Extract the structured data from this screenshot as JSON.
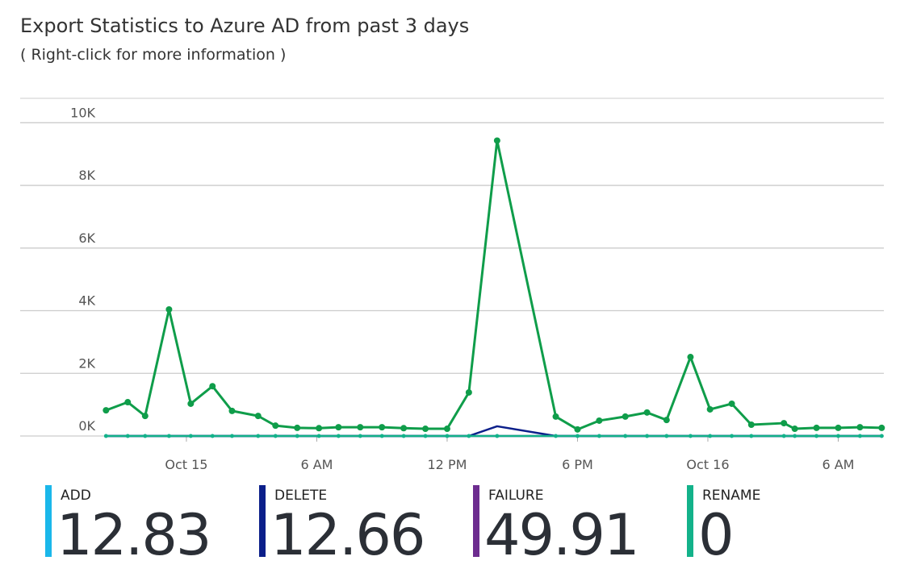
{
  "chart_data": {
    "type": "line",
    "title": "Export Statistics to Azure AD from past 3 days",
    "subtitle": "( Right-click for more information )",
    "x": [
      -3.7,
      -2.7,
      -1.9,
      -0.8,
      0.2,
      1.2,
      2.1,
      3.3,
      4.1,
      5.1,
      6.1,
      7.0,
      8.0,
      9.0,
      10.0,
      11.0,
      12.0,
      13.0,
      14.3,
      17.0,
      18.0,
      19.0,
      20.2,
      21.2,
      22.1,
      23.2,
      24.1,
      25.1,
      26.0,
      27.5,
      28.0,
      29.0,
      30.0,
      31.0,
      32.0
    ],
    "xlim": [
      -3.75,
      32.1
    ],
    "xticks": [
      {
        "value": 0,
        "label": "Oct 15"
      },
      {
        "value": 6,
        "label": "6 AM"
      },
      {
        "value": 12,
        "label": "12 PM"
      },
      {
        "value": 18,
        "label": "6 PM"
      },
      {
        "value": 24,
        "label": "Oct 16"
      },
      {
        "value": 30,
        "label": "6 AM"
      }
    ],
    "ylim": [
      0,
      10780
    ],
    "yticks": [
      {
        "value": 0,
        "label": "0K"
      },
      {
        "value": 2000,
        "label": "2K"
      },
      {
        "value": 4000,
        "label": "4K"
      },
      {
        "value": 6000,
        "label": "6K"
      },
      {
        "value": 8000,
        "label": "8K"
      },
      {
        "value": 10000,
        "label": "10K"
      }
    ],
    "grid": true,
    "series": [
      {
        "color": "#0f9d4a",
        "values": [
          820,
          1080,
          640,
          4040,
          1030,
          1590,
          800,
          640,
          330,
          260,
          250,
          280,
          280,
          280,
          250,
          230,
          230,
          1390,
          9430,
          620,
          210,
          490,
          620,
          750,
          510,
          2520,
          850,
          1030,
          360,
          410,
          230,
          260,
          260,
          280,
          260
        ]
      },
      {
        "color": "#6d2c8f",
        "values": [
          0,
          0,
          0,
          0,
          0,
          0,
          0,
          0,
          0,
          0,
          0,
          0,
          0,
          0,
          0,
          0,
          0,
          0,
          0,
          0,
          0,
          0,
          0,
          0,
          0,
          0,
          0,
          0,
          0,
          0,
          0,
          0,
          0,
          0,
          0
        ]
      },
      {
        "color": "#0b1f8a",
        "values": [
          0,
          0,
          0,
          0,
          0,
          0,
          0,
          0,
          0,
          0,
          0,
          0,
          0,
          0,
          0,
          0,
          0,
          0,
          310,
          0,
          0,
          0,
          0,
          0,
          0,
          0,
          0,
          0,
          0,
          0,
          0,
          0,
          0,
          0,
          0
        ]
      },
      {
        "color": "#13b28a",
        "values": [
          0,
          0,
          0,
          0,
          0,
          0,
          0,
          0,
          0,
          0,
          0,
          0,
          0,
          0,
          0,
          0,
          0,
          0,
          0,
          0,
          0,
          0,
          0,
          0,
          0,
          0,
          0,
          0,
          0,
          0,
          0,
          0,
          0,
          0,
          0
        ]
      }
    ],
    "tiles": [
      {
        "label": "ADD",
        "value": 12.83,
        "color": "#1ab7ea"
      },
      {
        "label": "DELETE",
        "value": 12.66,
        "color": "#0b1f8a"
      },
      {
        "label": "FAILURE",
        "value": 49.91,
        "color": "#6d2c8f"
      },
      {
        "label": "RENAME",
        "value": 0,
        "color": "#13b28a"
      }
    ]
  }
}
